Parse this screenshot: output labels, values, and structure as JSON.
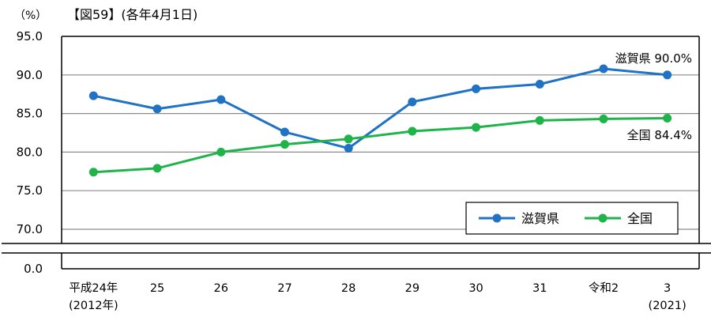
{
  "caption": "【図59】(各年4月1日)",
  "unit_label": "（%）",
  "chart_data": {
    "type": "line",
    "categories": [
      "平成24年",
      "25",
      "26",
      "27",
      "28",
      "29",
      "30",
      "31",
      "令和2",
      "3"
    ],
    "category_sublabels": [
      "(2012年)",
      "",
      "",
      "",
      "",
      "",
      "",
      "",
      "",
      "(2021)"
    ],
    "series": [
      {
        "name": "滋賀県",
        "color": "#1f72c4",
        "values": [
          87.3,
          85.6,
          86.8,
          82.6,
          80.5,
          86.5,
          88.2,
          88.8,
          90.8,
          90.0
        ]
      },
      {
        "name": "全国",
        "color": "#1fb44a",
        "values": [
          77.4,
          77.9,
          80.0,
          81.0,
          81.7,
          82.7,
          83.2,
          84.1,
          84.3,
          84.4
        ]
      }
    ],
    "yticks": [
      "95.0",
      "90.0",
      "85.0",
      "80.0",
      "75.0",
      "70.0",
      "0.0"
    ],
    "ylim": [
      70,
      95
    ],
    "axis_break": true,
    "grid": true,
    "legend_position": "bottom-right",
    "end_labels": [
      "滋賀県 90.0%",
      "全国 84.4%"
    ]
  }
}
